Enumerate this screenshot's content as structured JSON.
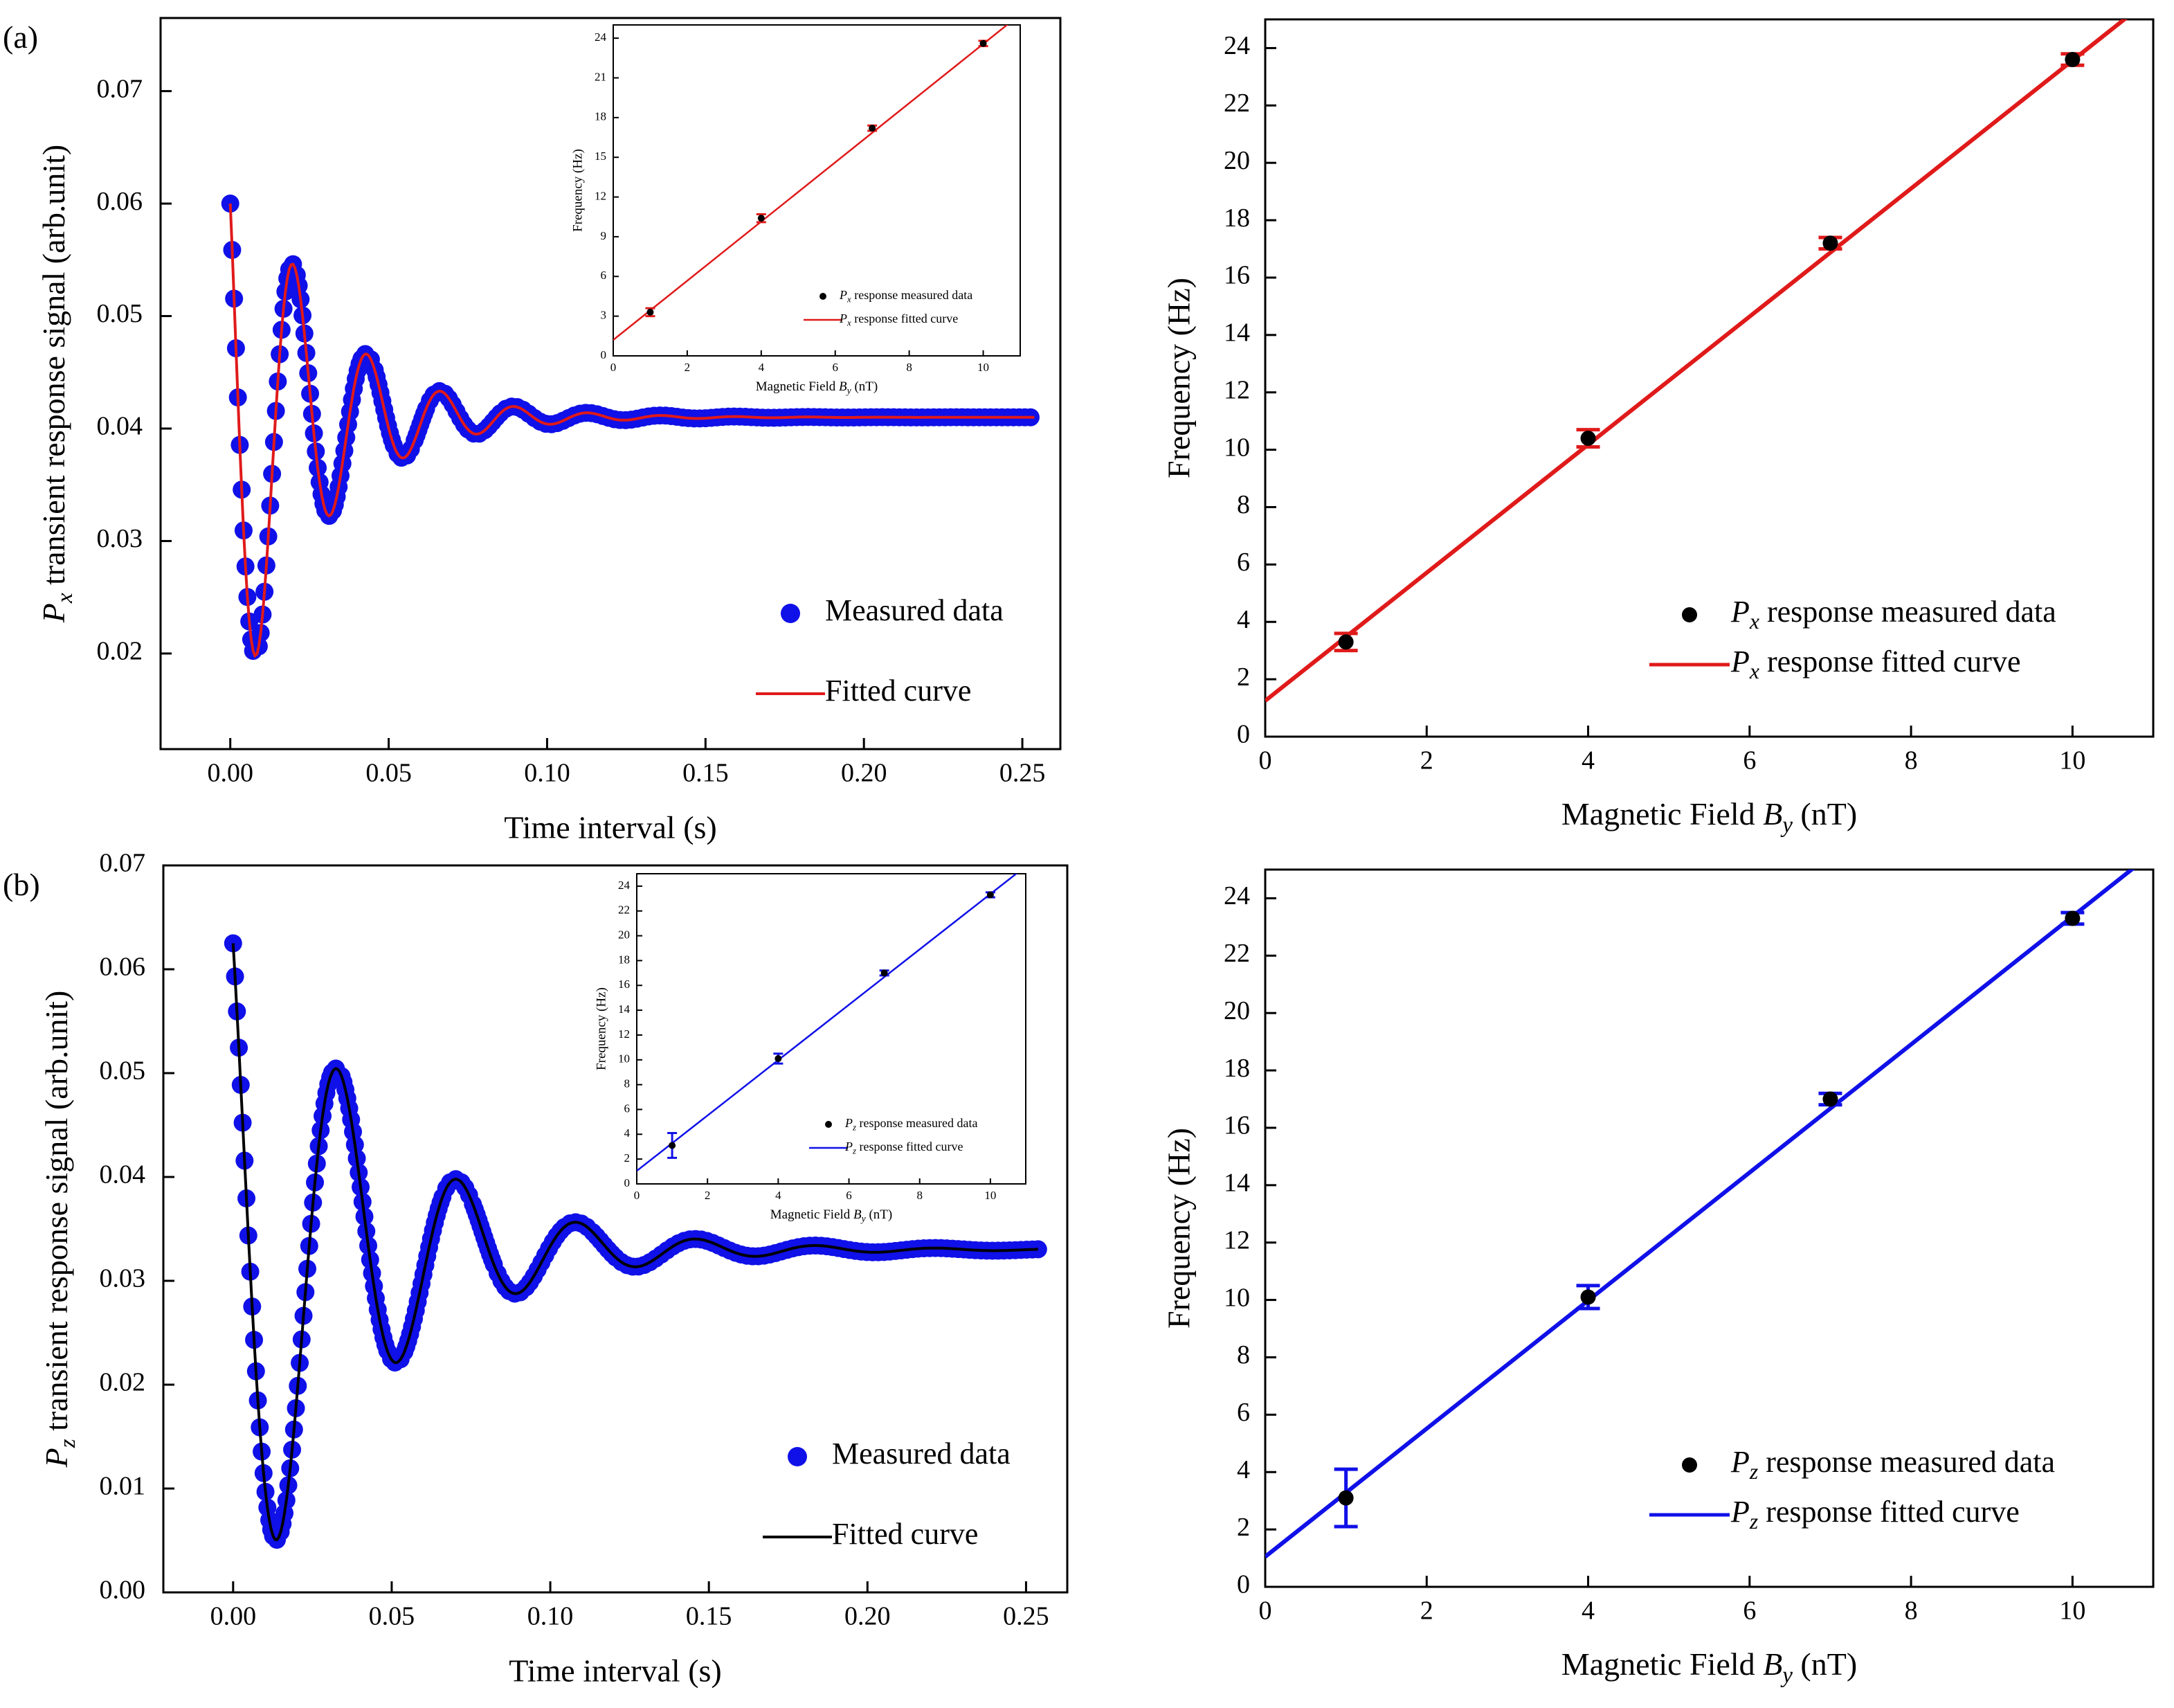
{
  "colors": {
    "blue": "#1010e8",
    "red": "#e01a1a",
    "black": "#000000"
  },
  "chart_data": [
    {
      "id": "a-main",
      "type": "scatter",
      "panel_label": "(a)",
      "xlabel": "Time interval (s)",
      "ylabel_main": "P",
      "ylabel_sub": "x",
      "ylabel_rest": " transient response  signal  (arb.unit)",
      "xlim": [
        -0.022,
        0.262
      ],
      "ylim": [
        0.0115,
        0.0765
      ],
      "xticks": [
        "0.00",
        "0.05",
        "0.10",
        "0.15",
        "0.20",
        "0.25"
      ],
      "xtick_values": [
        0,
        0.05,
        0.1,
        0.15,
        0.2,
        0.25
      ],
      "yticks": [
        "0.02",
        "0.03",
        "0.04",
        "0.05",
        "0.06",
        "0.07"
      ],
      "ytick_values": [
        0.02,
        0.03,
        0.04,
        0.05,
        0.06,
        0.07
      ],
      "signal": {
        "start": 0.06,
        "offset": 0.041,
        "amplitude": 0.0243,
        "decay_rate": 38,
        "frequency_hz": 43,
        "t_max": 0.254
      },
      "legend": {
        "placement": "bottom-right",
        "scatter_label": "Measured data",
        "line_label": "Fitted curve"
      },
      "series": [
        {
          "name": "Measured data",
          "color": "blue"
        },
        {
          "name": "Fitted curve",
          "color": "red"
        }
      ]
    },
    {
      "id": "a-inset",
      "type": "scatter",
      "xlabel_main": "Magnetic Field ",
      "xlabel_var": "B",
      "xlabel_sub": "y",
      "xlabel_rest": " (nT)",
      "ylabel": "Frequency (Hz)",
      "xlim": [
        0,
        11
      ],
      "ylim": [
        0,
        25
      ],
      "xticks": [
        "0",
        "2",
        "4",
        "6",
        "8",
        "10"
      ],
      "xtick_values": [
        0,
        2,
        4,
        6,
        8,
        10
      ],
      "yticks": [
        "0",
        "3",
        "6",
        "9",
        "12",
        "15",
        "18",
        "21",
        "24"
      ],
      "ytick_values": [
        0,
        3,
        6,
        9,
        12,
        15,
        18,
        21,
        24
      ],
      "x": [
        1,
        4,
        7,
        10
      ],
      "y": [
        3.3,
        10.4,
        17.2,
        23.6
      ],
      "errors": [
        0.3,
        0.3,
        0.2,
        0.2
      ],
      "fit": {
        "x": [
          0,
          11
        ],
        "y": [
          1.2,
          25.8
        ]
      },
      "legend": {
        "placement": "bottom-right",
        "scatter_label_var": "P",
        "scatter_label_sub": "x",
        "scatter_label_rest": " response measured data",
        "line_label_var": "P",
        "line_label_sub": "x",
        "line_label_rest": " response fitted curve"
      },
      "point_color": "black",
      "line_color": "red"
    },
    {
      "id": "a-right",
      "type": "scatter",
      "xlabel_main": "Magnetic Field ",
      "xlabel_var": "B",
      "xlabel_sub": "y",
      "xlabel_rest": " (nT)",
      "ylabel": "Frequency (Hz)",
      "xlim": [
        0,
        11
      ],
      "ylim": [
        0,
        25
      ],
      "xticks": [
        "0",
        "2",
        "4",
        "6",
        "8",
        "10"
      ],
      "xtick_values": [
        0,
        2,
        4,
        6,
        8,
        10
      ],
      "yticks": [
        "0",
        "2",
        "4",
        "6",
        "8",
        "10",
        "12",
        "14",
        "16",
        "18",
        "20",
        "22",
        "24"
      ],
      "ytick_values": [
        0,
        2,
        4,
        6,
        8,
        10,
        12,
        14,
        16,
        18,
        20,
        22,
        24
      ],
      "x": [
        1,
        4,
        7,
        10
      ],
      "y": [
        3.3,
        10.4,
        17.2,
        23.6
      ],
      "errors": [
        0.3,
        0.3,
        0.2,
        0.2
      ],
      "fit": {
        "x": [
          0,
          11
        ],
        "y": [
          1.25,
          25.8
        ]
      },
      "legend": {
        "placement": "bottom-right",
        "scatter_label_var": "P",
        "scatter_label_sub": "x",
        "scatter_label_rest": " response measured data",
        "line_label_var": "P",
        "line_label_sub": "x",
        "line_label_rest": " response fitted curve"
      },
      "point_color": "black",
      "line_color": "red"
    },
    {
      "id": "b-main",
      "type": "scatter",
      "panel_label": "(b)",
      "xlabel": "Time interval (s)",
      "ylabel_main": "P",
      "ylabel_sub": "z",
      "ylabel_rest": " transient response  signal  (arb.unit)",
      "xlim": [
        -0.022,
        0.263
      ],
      "ylim": [
        0,
        0.07
      ],
      "xticks": [
        "0.00",
        "0.05",
        "0.10",
        "0.15",
        "0.20",
        "0.25"
      ],
      "xtick_values": [
        0,
        0.05,
        0.1,
        0.15,
        0.2,
        0.25
      ],
      "yticks": [
        "0.00",
        "0.01",
        "0.02",
        "0.03",
        "0.04",
        "0.05",
        "0.06",
        "0.07"
      ],
      "ytick_values": [
        0,
        0.01,
        0.02,
        0.03,
        0.04,
        0.05,
        0.06,
        0.07
      ],
      "signal": {
        "start": 0.0625,
        "offset": 0.033,
        "amplitude": 0.0295,
        "decay_rate": 25,
        "frequency_hz": 26.5,
        "t_max": 0.254
      },
      "legend": {
        "placement": "bottom-right",
        "scatter_label": "Measured data",
        "line_label": "Fitted curve"
      },
      "series": [
        {
          "name": "Measured data",
          "color": "blue"
        },
        {
          "name": "Fitted curve",
          "color": "black"
        }
      ]
    },
    {
      "id": "b-inset",
      "type": "scatter",
      "xlabel_main": "Magnetic Field ",
      "xlabel_var": "B",
      "xlabel_sub": "y",
      "xlabel_rest": " (nT)",
      "ylabel": "Frequency (Hz)",
      "xlim": [
        0,
        11
      ],
      "ylim": [
        0,
        25
      ],
      "xticks": [
        "0",
        "2",
        "4",
        "6",
        "8",
        "10"
      ],
      "xtick_values": [
        0,
        2,
        4,
        6,
        8,
        10
      ],
      "yticks": [
        "0",
        "2",
        "4",
        "6",
        "8",
        "10",
        "12",
        "14",
        "16",
        "18",
        "20",
        "22",
        "24"
      ],
      "ytick_values": [
        0,
        2,
        4,
        6,
        8,
        10,
        12,
        14,
        16,
        18,
        20,
        22,
        24
      ],
      "x": [
        1,
        4,
        7,
        10
      ],
      "y": [
        3.1,
        10.1,
        17.0,
        23.3
      ],
      "errors": [
        1.0,
        0.4,
        0.2,
        0.2
      ],
      "fit": {
        "x": [
          0,
          11
        ],
        "y": [
          1.05,
          25.6
        ]
      },
      "legend": {
        "placement": "bottom-right",
        "scatter_label_var": "P",
        "scatter_label_sub": "z",
        "scatter_label_rest": " response measured data",
        "line_label_var": "P",
        "line_label_sub": "z",
        "line_label_rest": " response fitted curve"
      },
      "point_color": "black",
      "line_color": "blue"
    },
    {
      "id": "b-right",
      "type": "scatter",
      "xlabel_main": "Magnetic Field ",
      "xlabel_var": "B",
      "xlabel_sub": "y",
      "xlabel_rest": " (nT)",
      "ylabel": "Frequency (Hz)",
      "xlim": [
        0,
        11
      ],
      "ylim": [
        0,
        25
      ],
      "xticks": [
        "0",
        "2",
        "4",
        "6",
        "8",
        "10"
      ],
      "xtick_values": [
        0,
        2,
        4,
        6,
        8,
        10
      ],
      "yticks": [
        "0",
        "2",
        "4",
        "6",
        "8",
        "10",
        "12",
        "14",
        "16",
        "18",
        "20",
        "22",
        "24"
      ],
      "ytick_values": [
        0,
        2,
        4,
        6,
        8,
        10,
        12,
        14,
        16,
        18,
        20,
        22,
        24
      ],
      "x": [
        1,
        4,
        7,
        10
      ],
      "y": [
        3.1,
        10.1,
        17.0,
        23.3
      ],
      "errors": [
        1.0,
        0.4,
        0.2,
        0.2
      ],
      "fit": {
        "x": [
          0,
          11
        ],
        "y": [
          1.05,
          25.6
        ]
      },
      "legend": {
        "placement": "bottom-right",
        "scatter_label_var": "P",
        "scatter_label_sub": "z",
        "scatter_label_rest": " response measured data",
        "line_label_var": "P",
        "line_label_sub": "z",
        "line_label_rest": " response fitted curve"
      },
      "point_color": "black",
      "line_color": "blue"
    }
  ]
}
